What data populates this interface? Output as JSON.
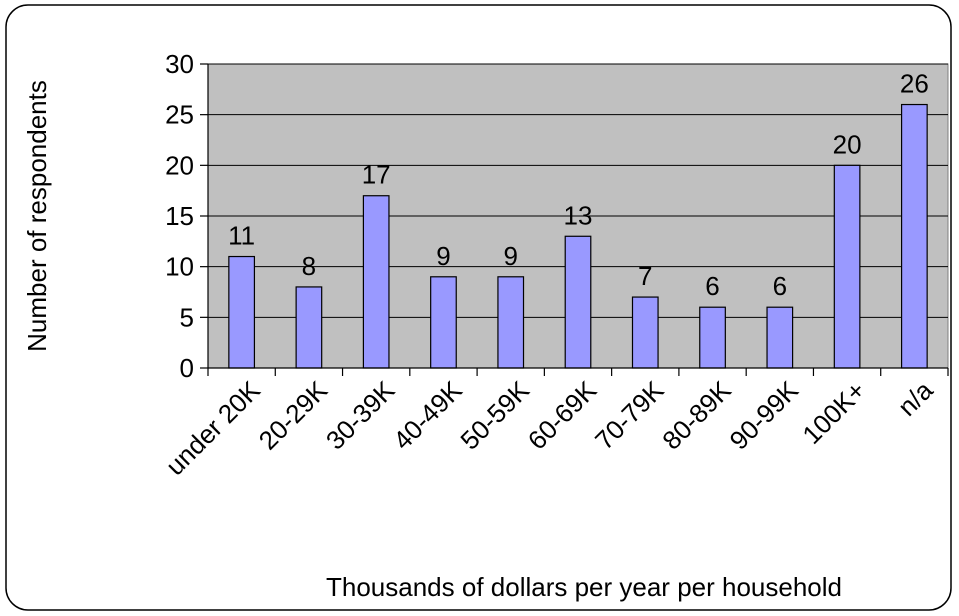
{
  "chart_data": {
    "type": "bar",
    "categories": [
      "under 20K",
      "20-29K",
      "30-39K",
      "40-49K",
      "50-59K",
      "60-69K",
      "70-79K",
      "80-89K",
      "90-99K",
      "100K+",
      "n/a"
    ],
    "values": [
      11,
      8,
      17,
      9,
      9,
      13,
      7,
      6,
      6,
      20,
      26
    ],
    "data_labels": [
      "11",
      "8",
      "17",
      "9",
      "9",
      "13",
      "7",
      "6",
      "6",
      "20",
      "26"
    ],
    "xlabel": "Thousands of dollars per year per household",
    "ylabel": "Number of respondents",
    "ylim": [
      0,
      30
    ],
    "yticks": [
      "0",
      "5",
      "10",
      "15",
      "20",
      "25",
      "30"
    ],
    "grid": true,
    "legend": "none",
    "colors": {
      "bar_fill": "#9999ff",
      "plot_background": "#c0c0c0",
      "gridline": "#000000",
      "border": "#000000"
    }
  }
}
